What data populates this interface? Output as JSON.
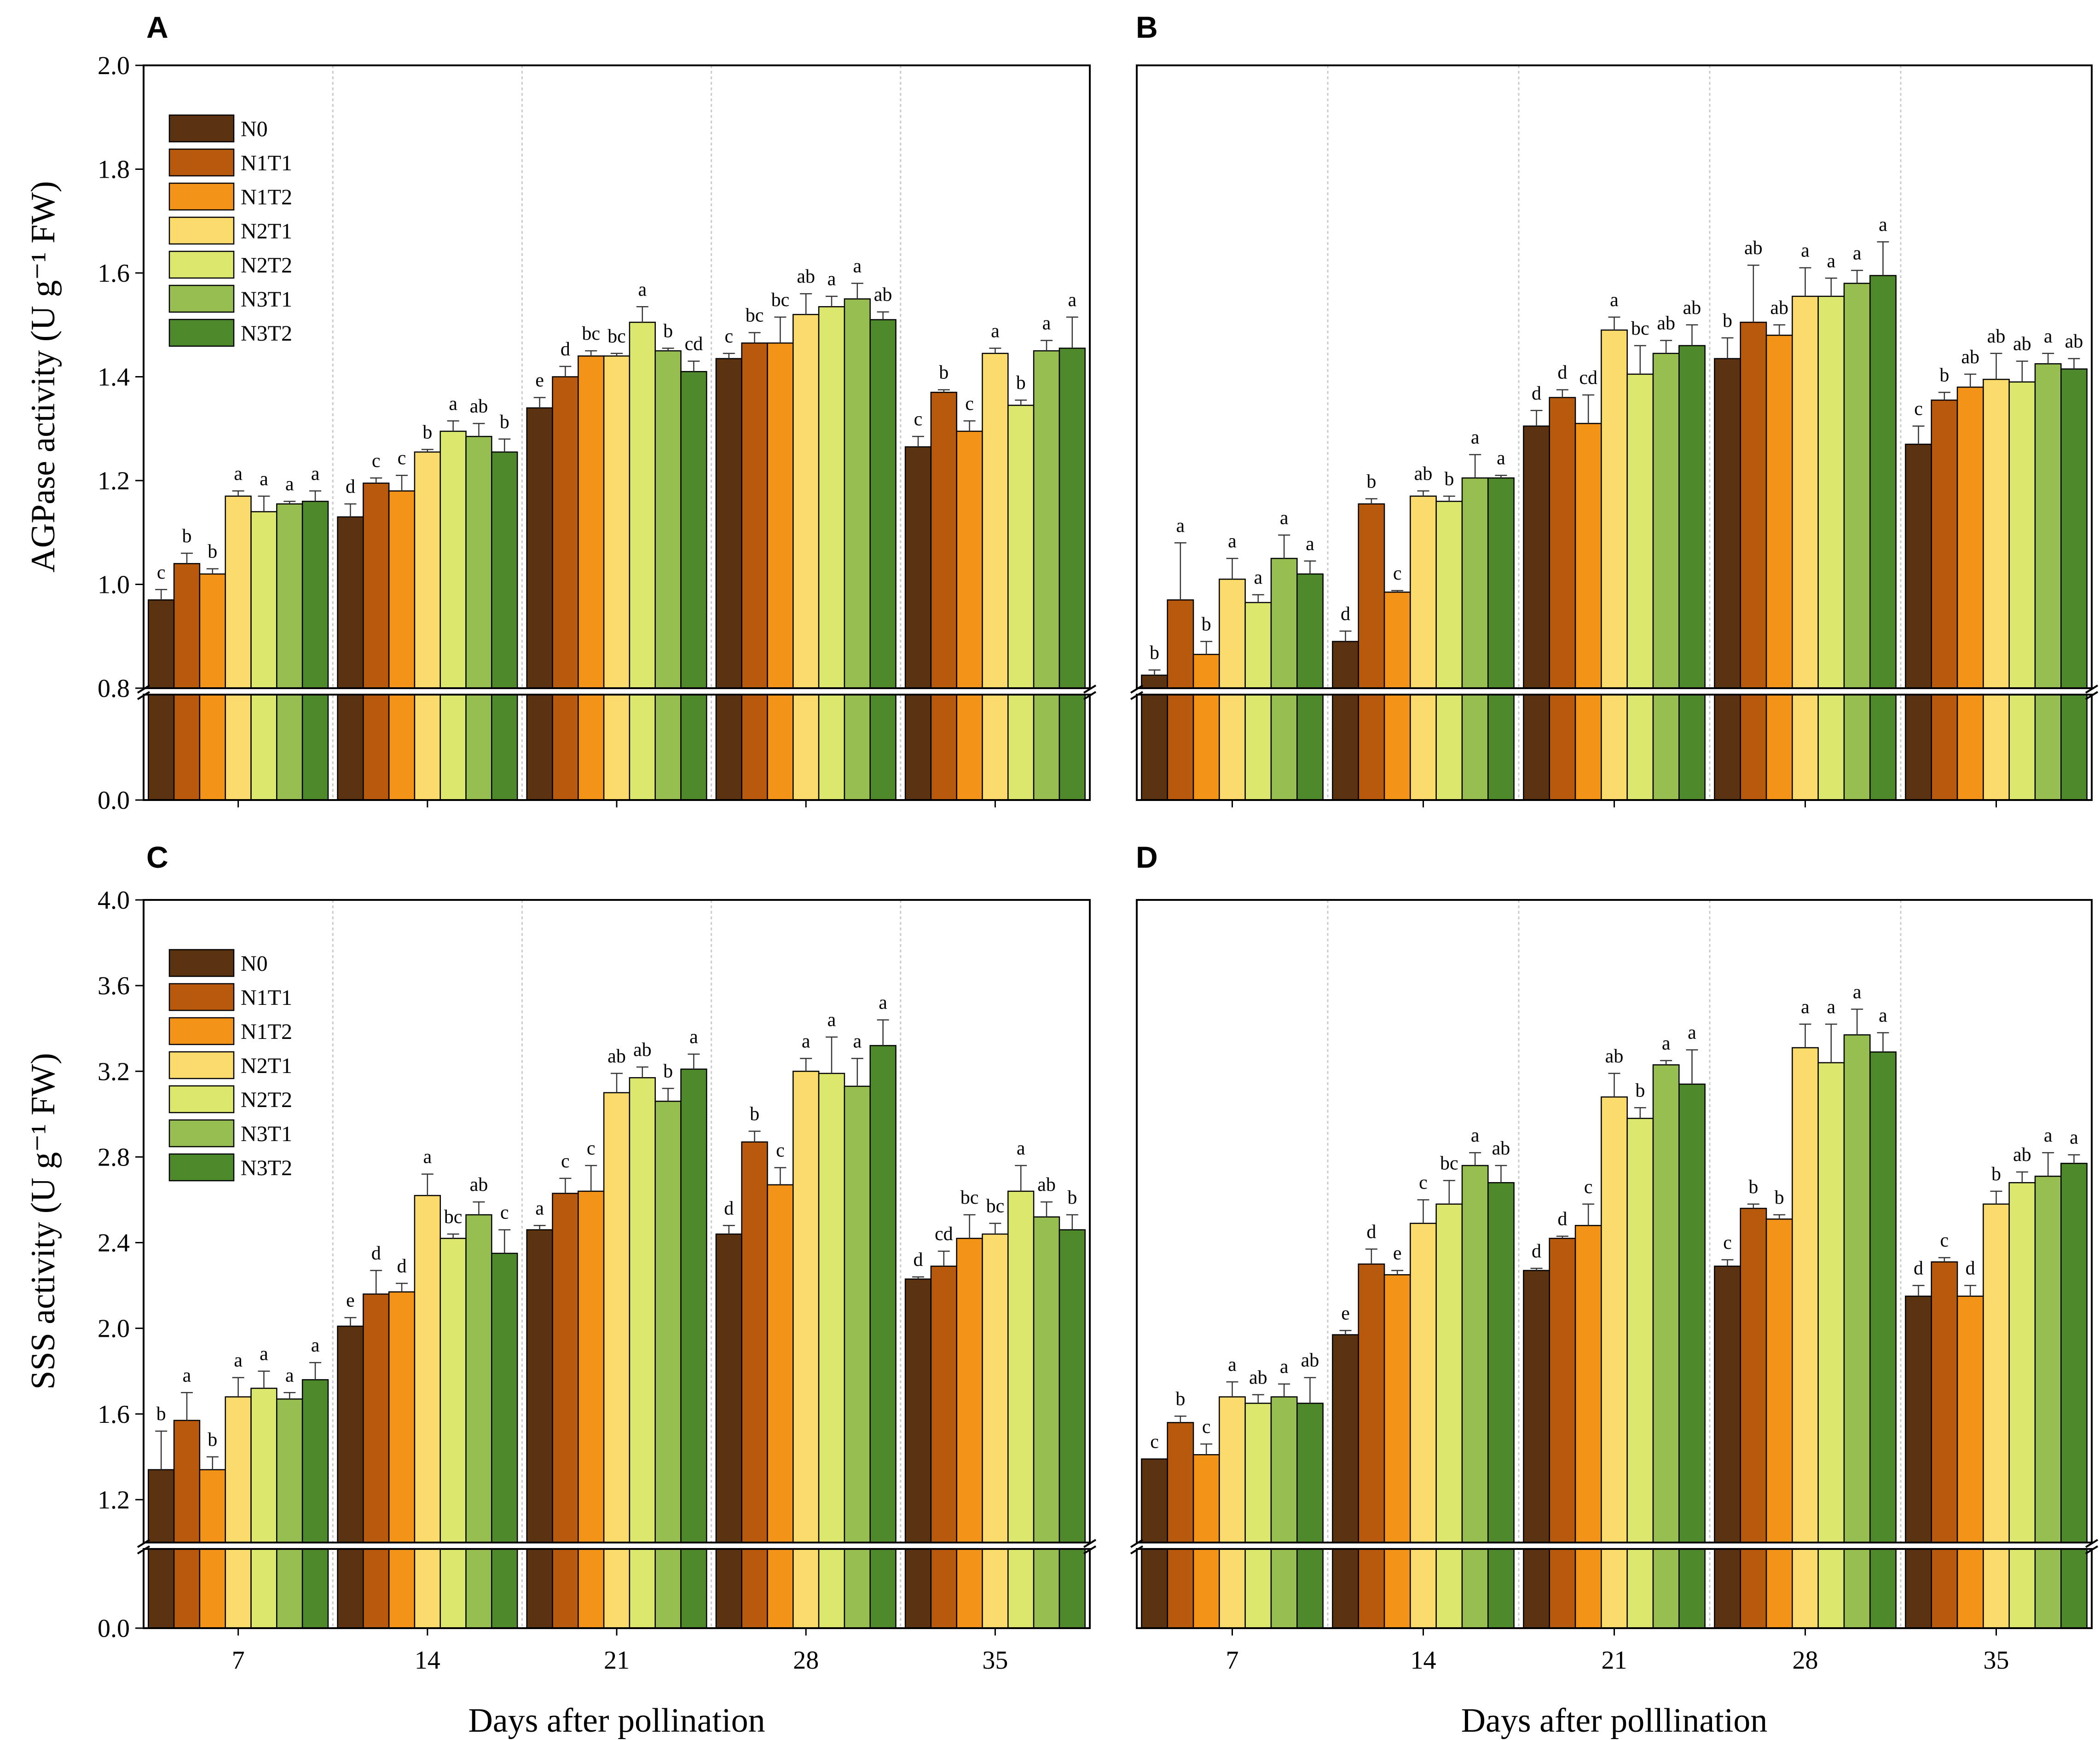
{
  "series_colors": [
    "#5C3310",
    "#B85A0D",
    "#F39419",
    "#FBDB6C",
    "#DCE76E",
    "#96BE50",
    "#4E8A2C"
  ],
  "chart_data": [
    {
      "panel": "A",
      "type": "bar",
      "ylabel": "AGPase activity (U g⁻¹ FW)",
      "xlabel": "",
      "ylim": [
        0.8,
        2.0
      ],
      "yticks": [
        "0.8",
        "1.0",
        "1.2",
        "1.4",
        "1.6",
        "1.8",
        "2.0"
      ],
      "axis_break": true,
      "baseline_label": "0.0",
      "categories": [
        "7",
        "14",
        "21",
        "28",
        "35"
      ],
      "legend": true,
      "series": [
        {
          "name": "N0",
          "values": [
            0.97,
            1.13,
            1.34,
            1.435,
            1.265
          ],
          "errors": [
            0.02,
            0.025,
            0.02,
            0.01,
            0.02
          ],
          "letters": [
            "c",
            "d",
            "e",
            "c",
            "c"
          ]
        },
        {
          "name": "N1T1",
          "values": [
            1.04,
            1.195,
            1.4,
            1.465,
            1.37
          ],
          "errors": [
            0.02,
            0.01,
            0.02,
            0.02,
            0.005
          ],
          "letters": [
            "b",
            "c",
            "d",
            "bc",
            "b"
          ]
        },
        {
          "name": "N1T2",
          "values": [
            1.02,
            1.18,
            1.44,
            1.465,
            1.295
          ],
          "errors": [
            0.01,
            0.03,
            0.01,
            0.05,
            0.02
          ],
          "letters": [
            "b",
            "c",
            "bc",
            "bc",
            "c"
          ]
        },
        {
          "name": "N2T1",
          "values": [
            1.17,
            1.255,
            1.44,
            1.52,
            1.445
          ],
          "errors": [
            0.01,
            0.005,
            0.005,
            0.04,
            0.01
          ],
          "letters": [
            "a",
            "b",
            "bc",
            "ab",
            "a"
          ]
        },
        {
          "name": "N2T2",
          "values": [
            1.14,
            1.295,
            1.505,
            1.535,
            1.345
          ],
          "errors": [
            0.03,
            0.02,
            0.03,
            0.02,
            0.01
          ],
          "letters": [
            "a",
            "a",
            "a",
            "a",
            "b"
          ]
        },
        {
          "name": "N3T1",
          "values": [
            1.155,
            1.285,
            1.45,
            1.55,
            1.45
          ],
          "errors": [
            0.005,
            0.025,
            0.005,
            0.03,
            0.02
          ],
          "letters": [
            "a",
            "ab",
            "b",
            "a",
            "a"
          ]
        },
        {
          "name": "N3T2",
          "values": [
            1.16,
            1.255,
            1.41,
            1.51,
            1.455
          ],
          "errors": [
            0.02,
            0.025,
            0.02,
            0.015,
            0.06
          ],
          "letters": [
            "a",
            "b",
            "cd",
            "ab",
            "a"
          ]
        }
      ]
    },
    {
      "panel": "B",
      "type": "bar",
      "ylabel": "",
      "xlabel": "",
      "ylim": [
        0.8,
        2.0
      ],
      "yticks": [],
      "axis_break": true,
      "baseline_label": "",
      "categories": [
        "7",
        "14",
        "21",
        "28",
        "35"
      ],
      "legend": false,
      "series": [
        {
          "name": "N0",
          "values": [
            0.825,
            0.89,
            1.305,
            1.435,
            1.27
          ],
          "errors": [
            0.01,
            0.02,
            0.03,
            0.04,
            0.035
          ],
          "letters": [
            "b",
            "d",
            "d",
            "b",
            "c"
          ]
        },
        {
          "name": "N1T1",
          "values": [
            0.97,
            1.155,
            1.36,
            1.505,
            1.355
          ],
          "errors": [
            0.11,
            0.01,
            0.015,
            0.11,
            0.015
          ],
          "letters": [
            "a",
            "b",
            "d",
            "ab",
            "b"
          ]
        },
        {
          "name": "N1T2",
          "values": [
            0.865,
            0.985,
            1.31,
            1.48,
            1.38
          ],
          "errors": [
            0.025,
            0.003,
            0.055,
            0.02,
            0.025
          ],
          "letters": [
            "b",
            "c",
            "cd",
            "ab",
            "ab"
          ]
        },
        {
          "name": "N2T1",
          "values": [
            1.01,
            1.17,
            1.49,
            1.555,
            1.395
          ],
          "errors": [
            0.04,
            0.01,
            0.025,
            0.055,
            0.05
          ],
          "letters": [
            "a",
            "ab",
            "a",
            "a",
            "ab"
          ]
        },
        {
          "name": "N2T2",
          "values": [
            0.965,
            1.16,
            1.405,
            1.555,
            1.39
          ],
          "errors": [
            0.015,
            0.01,
            0.055,
            0.035,
            0.04
          ],
          "letters": [
            "a",
            "b",
            "bc",
            "a",
            "ab"
          ]
        },
        {
          "name": "N3T1",
          "values": [
            1.05,
            1.205,
            1.445,
            1.58,
            1.425
          ],
          "errors": [
            0.045,
            0.045,
            0.025,
            0.025,
            0.02
          ],
          "letters": [
            "a",
            "a",
            "ab",
            "a",
            "a"
          ]
        },
        {
          "name": "N3T2",
          "values": [
            1.02,
            1.205,
            1.46,
            1.595,
            1.415
          ],
          "errors": [
            0.025,
            0.005,
            0.04,
            0.065,
            0.02
          ],
          "letters": [
            "a",
            "a",
            "ab",
            "a",
            "ab"
          ]
        }
      ]
    },
    {
      "panel": "C",
      "type": "bar",
      "ylabel": "SSS activity (U g⁻¹ FW)",
      "xlabel": "Days after pollination",
      "ylim": [
        1.0,
        4.0
      ],
      "yticks": [
        "1.2",
        "1.6",
        "2.0",
        "2.4",
        "2.8",
        "3.2",
        "3.6",
        "4.0"
      ],
      "axis_break": true,
      "baseline_label": "0.0",
      "categories": [
        "7",
        "14",
        "21",
        "28",
        "35"
      ],
      "legend": true,
      "series": [
        {
          "name": "N0",
          "values": [
            1.34,
            2.01,
            2.46,
            2.44,
            2.23
          ],
          "errors": [
            0.18,
            0.04,
            0.02,
            0.04,
            0.01
          ],
          "letters": [
            "b",
            "e",
            "a",
            "d",
            "d"
          ]
        },
        {
          "name": "N1T1",
          "values": [
            1.57,
            2.16,
            2.63,
            2.87,
            2.29
          ],
          "errors": [
            0.13,
            0.11,
            0.07,
            0.05,
            0.07
          ],
          "letters": [
            "a",
            "d",
            "c",
            "b",
            "cd"
          ]
        },
        {
          "name": "N1T2",
          "values": [
            1.34,
            2.17,
            2.64,
            2.67,
            2.42
          ],
          "errors": [
            0.06,
            0.04,
            0.12,
            0.08,
            0.11
          ],
          "letters": [
            "b",
            "d",
            "c",
            "c",
            "bc"
          ]
        },
        {
          "name": "N2T1",
          "values": [
            1.68,
            2.62,
            3.1,
            3.2,
            2.44
          ],
          "errors": [
            0.09,
            0.1,
            0.09,
            0.06,
            0.05
          ],
          "letters": [
            "a",
            "a",
            "ab",
            "a",
            "bc"
          ]
        },
        {
          "name": "N2T2",
          "values": [
            1.72,
            2.42,
            3.17,
            3.19,
            2.64
          ],
          "errors": [
            0.08,
            0.02,
            0.05,
            0.17,
            0.12
          ],
          "letters": [
            "a",
            "bc",
            "ab",
            "a",
            "a"
          ]
        },
        {
          "name": "N3T1",
          "values": [
            1.67,
            2.53,
            3.06,
            3.13,
            2.52
          ],
          "errors": [
            0.03,
            0.06,
            0.06,
            0.13,
            0.07
          ],
          "letters": [
            "a",
            "ab",
            "b",
            "a",
            "ab"
          ]
        },
        {
          "name": "N3T2",
          "values": [
            1.76,
            2.35,
            3.21,
            3.32,
            2.46
          ],
          "errors": [
            0.08,
            0.11,
            0.07,
            0.12,
            0.07
          ],
          "letters": [
            "a",
            "c",
            "a",
            "a",
            "b"
          ]
        }
      ]
    },
    {
      "panel": "D",
      "type": "bar",
      "ylabel": "",
      "xlabel": "Days after polllination",
      "ylim": [
        1.0,
        4.0
      ],
      "yticks": [],
      "axis_break": true,
      "baseline_label": "",
      "categories": [
        "7",
        "14",
        "21",
        "28",
        "35"
      ],
      "legend": false,
      "series": [
        {
          "name": "N0",
          "values": [
            1.39,
            1.97,
            2.27,
            2.29,
            2.15
          ],
          "errors": [
            0.0,
            0.02,
            0.01,
            0.03,
            0.05
          ],
          "letters": [
            "c",
            "e",
            "d",
            "c",
            "d"
          ]
        },
        {
          "name": "N1T1",
          "values": [
            1.56,
            2.3,
            2.42,
            2.56,
            2.31
          ],
          "errors": [
            0.03,
            0.07,
            0.01,
            0.02,
            0.02
          ],
          "letters": [
            "b",
            "d",
            "d",
            "b",
            "c"
          ]
        },
        {
          "name": "N1T2",
          "values": [
            1.41,
            2.25,
            2.48,
            2.51,
            2.15
          ],
          "errors": [
            0.05,
            0.02,
            0.1,
            0.02,
            0.05
          ],
          "letters": [
            "c",
            "e",
            "c",
            "b",
            "d"
          ]
        },
        {
          "name": "N2T1",
          "values": [
            1.68,
            2.49,
            3.08,
            3.31,
            2.58
          ],
          "errors": [
            0.07,
            0.11,
            0.11,
            0.11,
            0.06
          ],
          "letters": [
            "a",
            "c",
            "ab",
            "a",
            "b"
          ]
        },
        {
          "name": "N2T2",
          "values": [
            1.65,
            2.58,
            2.98,
            3.24,
            2.68
          ],
          "errors": [
            0.04,
            0.11,
            0.05,
            0.18,
            0.05
          ],
          "letters": [
            "ab",
            "bc",
            "b",
            "a",
            "ab"
          ]
        },
        {
          "name": "N3T1",
          "values": [
            1.68,
            2.76,
            3.23,
            3.37,
            2.71
          ],
          "errors": [
            0.06,
            0.06,
            0.02,
            0.12,
            0.11
          ],
          "letters": [
            "a",
            "a",
            "a",
            "a",
            "a"
          ]
        },
        {
          "name": "N3T2",
          "values": [
            1.65,
            2.68,
            3.14,
            3.29,
            2.77
          ],
          "errors": [
            0.12,
            0.08,
            0.16,
            0.09,
            0.04
          ],
          "letters": [
            "ab",
            "ab",
            "a",
            "a",
            "a"
          ]
        }
      ]
    }
  ]
}
